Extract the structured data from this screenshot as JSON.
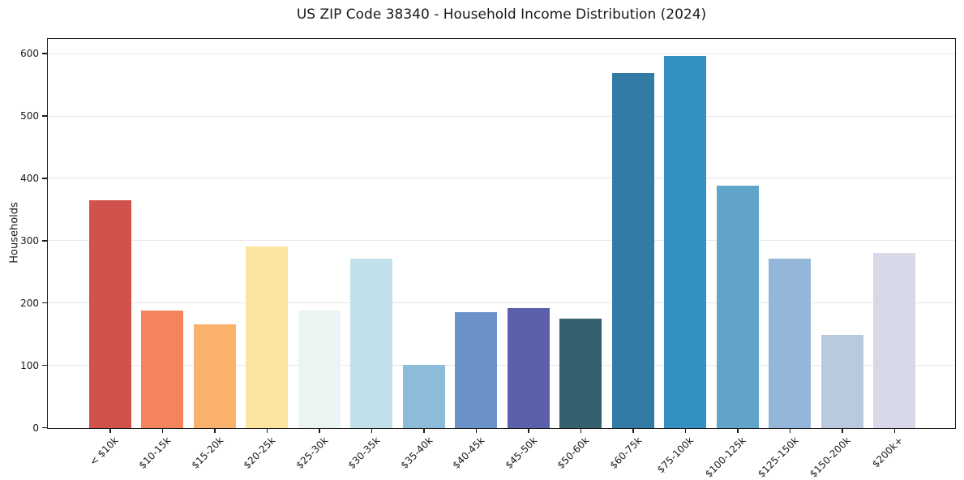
{
  "chart_data": {
    "type": "bar",
    "title": "US ZIP Code 38340 - Household Income Distribution (2024)",
    "xlabel": "",
    "ylabel": "Households",
    "categories": [
      "< $10k",
      "$10-15k",
      "$15-20k",
      "$20-25k",
      "$25-30k",
      "$30-35k",
      "$35-40k",
      "$40-45k",
      "$45-50k",
      "$50-60k",
      "$60-75k",
      "$75-100k",
      "$100-125k",
      "$125-150k",
      "$150-200k",
      "$200k+"
    ],
    "values": [
      366,
      189,
      166,
      291,
      188,
      272,
      101,
      186,
      192,
      176,
      570,
      597,
      389,
      272,
      150,
      281
    ],
    "bar_colors": [
      "#d1514b",
      "#f5845d",
      "#f9b16c",
      "#fce3a0",
      "#eaf4f2",
      "#c2e0ea",
      "#8dbbda",
      "#6b92c8",
      "#5c5fab",
      "#35606e",
      "#327ba4",
      "#3590c4",
      "#60a5c9",
      "#93b6da",
      "#bacade",
      "#d8d9e8"
    ],
    "yticks": [
      0,
      100,
      200,
      300,
      400,
      500,
      600
    ],
    "ylim": [
      0,
      623
    ],
    "grid": "horizontal",
    "legend": "none",
    "x_tick_rotation": 45,
    "colors": {
      "background": "#ffffff",
      "gridline": "#e7e7e7",
      "spine": "#1c1c1c",
      "text": "#1a1a1a"
    }
  }
}
